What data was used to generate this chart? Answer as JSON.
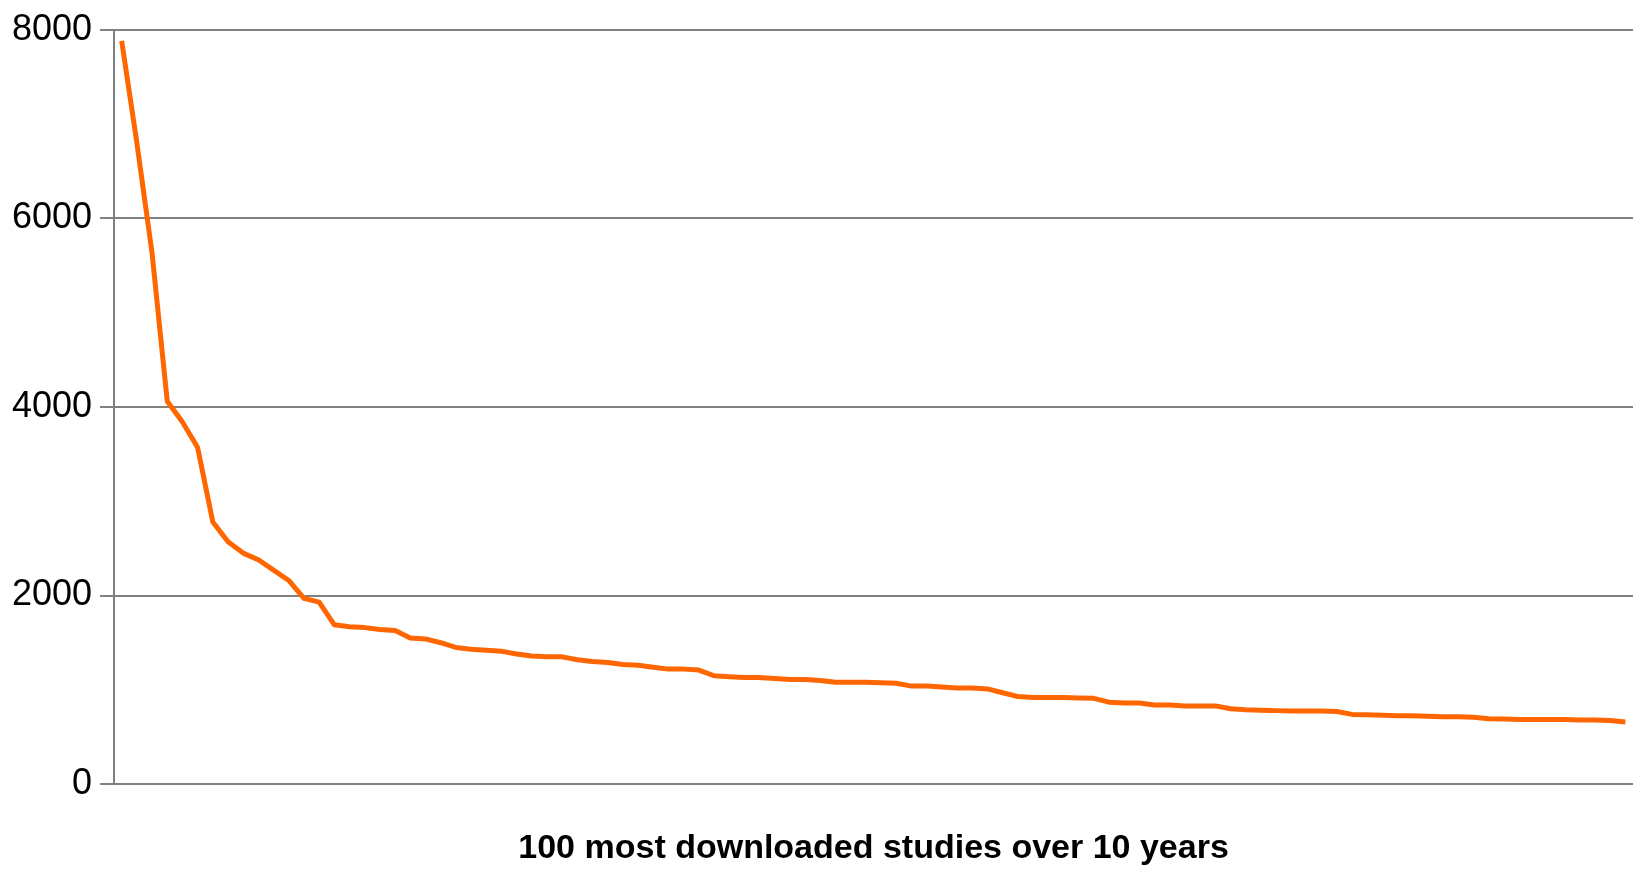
{
  "chart_data": {
    "type": "line",
    "xlabel": "100 most downloaded studies over 10 years",
    "categories": [
      null,
      null,
      null,
      null,
      null,
      null,
      null,
      null,
      null,
      null,
      null,
      null,
      null,
      null,
      null,
      null,
      null,
      null,
      null,
      null,
      null,
      null,
      null,
      null,
      null,
      null,
      null,
      null,
      null,
      null,
      null,
      null,
      null,
      null,
      null,
      null,
      null,
      null,
      null,
      null,
      null,
      null,
      null,
      null,
      null,
      null,
      null,
      null,
      null,
      null,
      null,
      null,
      null,
      null,
      null,
      null,
      null,
      null,
      null,
      null,
      null,
      null,
      null,
      null,
      null,
      null,
      null,
      null,
      null,
      null,
      null,
      null,
      null,
      null,
      null,
      null,
      null,
      null,
      null,
      null,
      null,
      null,
      null,
      null,
      null,
      null,
      null,
      null,
      null,
      null,
      null,
      null,
      null,
      null,
      null,
      null,
      null,
      null,
      null,
      null
    ],
    "series": [
      {
        "color": "#ff6600",
        "values": [
          7880,
          6800,
          5630,
          4060,
          3840,
          3570,
          2780,
          2570,
          2450,
          2380,
          2270,
          2160,
          1970,
          1930,
          1690,
          1670,
          1660,
          1640,
          1630,
          1550,
          1540,
          1500,
          1450,
          1430,
          1420,
          1410,
          1380,
          1360,
          1350,
          1350,
          1320,
          1300,
          1290,
          1270,
          1260,
          1240,
          1220,
          1220,
          1210,
          1150,
          1140,
          1130,
          1130,
          1120,
          1110,
          1110,
          1100,
          1080,
          1080,
          1080,
          1075,
          1070,
          1040,
          1040,
          1030,
          1020,
          1020,
          1010,
          970,
          930,
          920,
          920,
          920,
          915,
          910,
          870,
          860,
          860,
          840,
          840,
          830,
          830,
          830,
          800,
          790,
          785,
          780,
          775,
          775,
          775,
          770,
          740,
          735,
          730,
          725,
          725,
          720,
          715,
          715,
          710,
          695,
          690,
          685,
          685,
          685,
          685,
          680,
          680,
          675,
          660
        ]
      }
    ],
    "ylim": [
      0,
      8000
    ],
    "yticks": [
      0,
      2000,
      4000,
      6000,
      8000
    ],
    "grid": "y",
    "legend": false,
    "marker": "none",
    "line_style": "solid"
  }
}
